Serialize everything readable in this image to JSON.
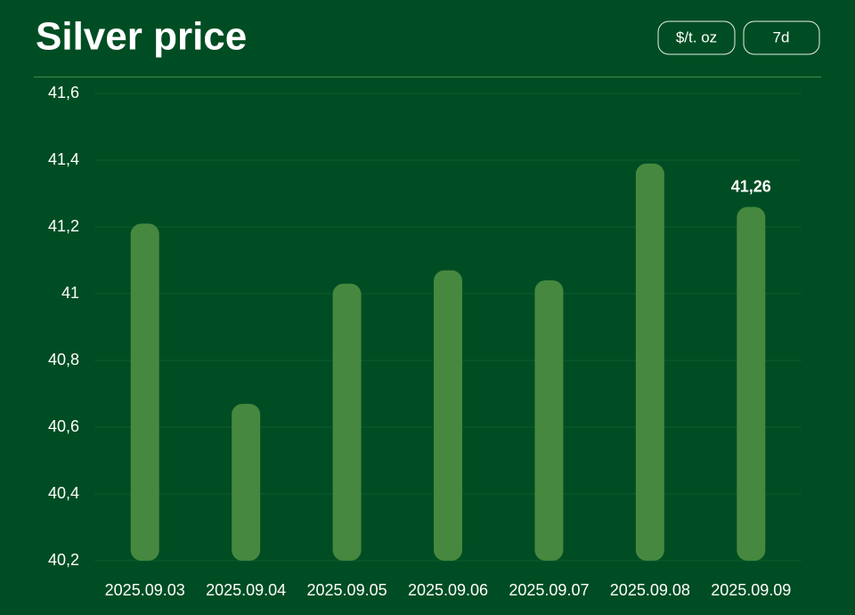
{
  "chart_data": {
    "type": "bar",
    "title": "Silver price",
    "categories": [
      "2025.09.03",
      "2025.09.04",
      "2025.09.05",
      "2025.09.06",
      "2025.09.07",
      "2025.09.08",
      "2025.09.09"
    ],
    "values": [
      41.21,
      40.67,
      41.03,
      41.07,
      41.04,
      41.39,
      41.26
    ],
    "value_labels": [
      null,
      null,
      null,
      null,
      null,
      null,
      "41,26"
    ],
    "color": "#46883f",
    "ylim": [
      40.2,
      41.6
    ],
    "yticks": [
      {
        "value": 40.2,
        "label": "40,2"
      },
      {
        "value": 40.4,
        "label": "40,4"
      },
      {
        "value": 40.6,
        "label": "40,6"
      },
      {
        "value": 40.8,
        "label": "40,8"
      },
      41,
      {
        "value": 41.2,
        "label": "41,2"
      },
      {
        "value": 41.4,
        "label": "41,4"
      },
      {
        "value": 41.6,
        "label": "41,6"
      }
    ],
    "grid": true
  },
  "controls": [
    "$/t. oz",
    "7d"
  ]
}
